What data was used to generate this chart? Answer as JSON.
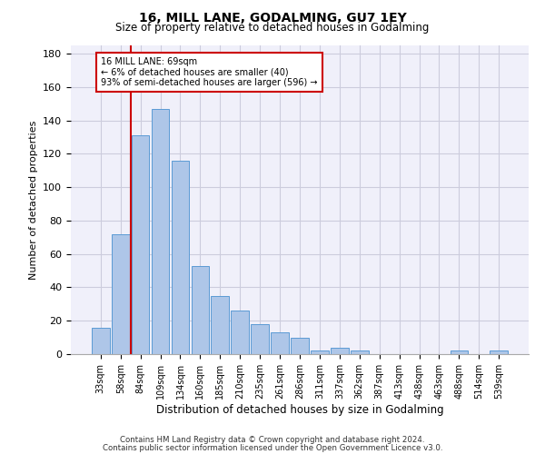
{
  "title": "16, MILL LANE, GODALMING, GU7 1EY",
  "subtitle": "Size of property relative to detached houses in Godalming",
  "xlabel": "Distribution of detached houses by size in Godalming",
  "ylabel": "Number of detached properties",
  "bar_color": "#aec6e8",
  "bar_edge_color": "#5b9bd5",
  "background_color": "#f0f0fa",
  "grid_color": "#ccccdd",
  "categories": [
    "33sqm",
    "58sqm",
    "84sqm",
    "109sqm",
    "134sqm",
    "160sqm",
    "185sqm",
    "210sqm",
    "235sqm",
    "261sqm",
    "286sqm",
    "311sqm",
    "337sqm",
    "362sqm",
    "387sqm",
    "413sqm",
    "438sqm",
    "463sqm",
    "488sqm",
    "514sqm",
    "539sqm"
  ],
  "values": [
    16,
    72,
    131,
    147,
    116,
    53,
    35,
    26,
    18,
    13,
    10,
    2,
    4,
    2,
    0,
    0,
    0,
    0,
    2,
    0,
    2
  ],
  "ylim": [
    0,
    185
  ],
  "yticks": [
    0,
    20,
    40,
    60,
    80,
    100,
    120,
    140,
    160,
    180
  ],
  "property_line_x": 1.5,
  "property_line_color": "#cc0000",
  "annotation_text": "16 MILL LANE: 69sqm\n← 6% of detached houses are smaller (40)\n93% of semi-detached houses are larger (596) →",
  "annotation_box_color": "#ffffff",
  "annotation_box_edge": "#cc0000",
  "footer_line1": "Contains HM Land Registry data © Crown copyright and database right 2024.",
  "footer_line2": "Contains public sector information licensed under the Open Government Licence v3.0."
}
